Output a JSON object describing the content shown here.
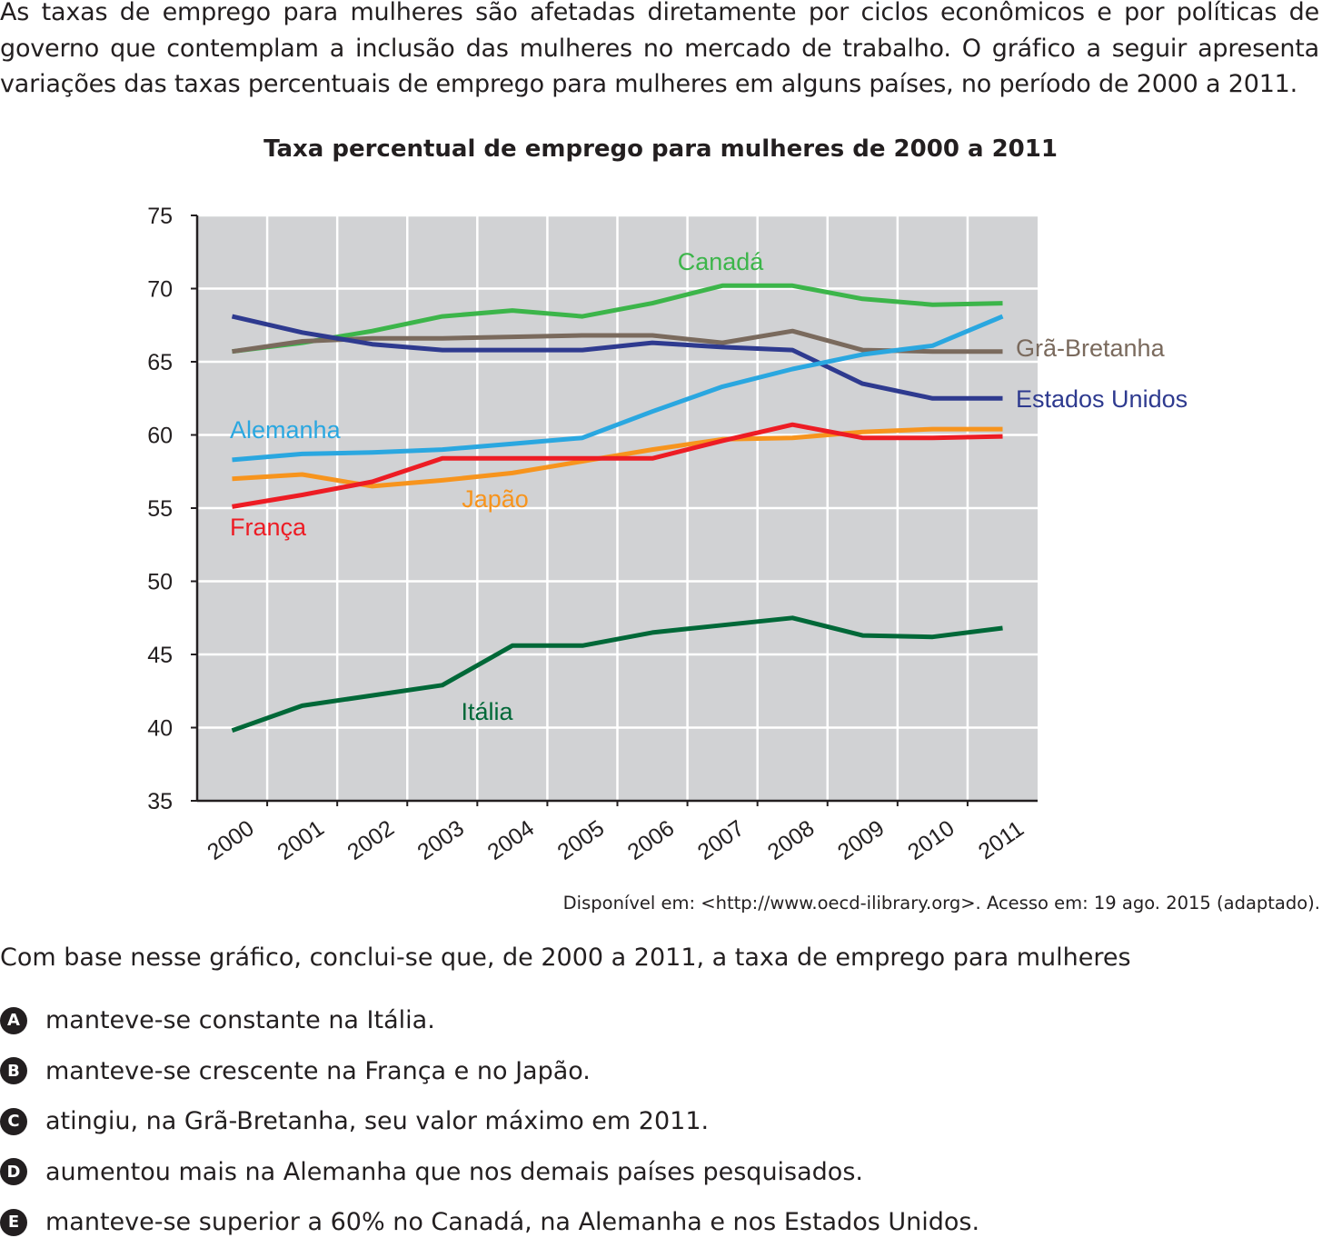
{
  "intro": "As taxas de emprego para mulheres são afetadas diretamente por ciclos econômicos e por políticas de governo que contemplam a inclusão das mulheres no mercado de trabalho. O gráfico a seguir apresenta variações das taxas percentuais de emprego para mulheres em alguns países, no período de 2000 a 2011.",
  "chart_data": {
    "type": "line",
    "title": "Taxa percentual de emprego para mulheres de 2000 a 2011",
    "xlabel": "",
    "ylabel": "",
    "x": [
      "2000",
      "2001",
      "2002",
      "2003",
      "2004",
      "2005",
      "2006",
      "2007",
      "2008",
      "2009",
      "2010",
      "2011"
    ],
    "ylim": [
      35,
      75
    ],
    "yticks": [
      "35",
      "40",
      "45",
      "50",
      "55",
      "60",
      "65",
      "70",
      "75"
    ],
    "grid": true,
    "series": [
      {
        "name": "Canadá",
        "color": "#3cb54a",
        "values": [
          65.7,
          66.3,
          67.1,
          68.1,
          68.5,
          68.1,
          69.0,
          70.2,
          70.2,
          69.3,
          68.9,
          69.0
        ]
      },
      {
        "name": "Grã-Bretanha",
        "color": "#7a6a5d",
        "values": [
          65.7,
          66.4,
          66.6,
          66.6,
          66.7,
          66.8,
          66.8,
          66.3,
          67.1,
          65.8,
          65.7,
          65.7
        ]
      },
      {
        "name": "Estados Unidos",
        "color": "#2e3a8f",
        "values": [
          68.1,
          67.0,
          66.2,
          65.8,
          65.8,
          65.8,
          66.3,
          66.0,
          65.8,
          63.5,
          62.5,
          62.5
        ]
      },
      {
        "name": "Alemanha",
        "color": "#2aa7e0",
        "values": [
          58.3,
          58.7,
          58.8,
          59.0,
          59.4,
          59.8,
          61.6,
          63.3,
          64.5,
          65.5,
          66.1,
          68.1
        ]
      },
      {
        "name": "Japão",
        "color": "#f7941d",
        "values": [
          57.0,
          57.3,
          56.5,
          56.9,
          57.4,
          58.2,
          59.0,
          59.7,
          59.8,
          60.2,
          60.4,
          60.4
        ]
      },
      {
        "name": "França",
        "color": "#ed1c24",
        "values": [
          55.1,
          55.9,
          56.8,
          58.4,
          58.4,
          58.4,
          58.4,
          59.6,
          60.7,
          59.8,
          59.8,
          59.9
        ]
      },
      {
        "name": "Itália",
        "color": "#006838",
        "values": [
          39.8,
          41.5,
          42.2,
          42.9,
          45.6,
          45.6,
          46.5,
          47.0,
          47.5,
          46.3,
          46.2,
          46.8
        ]
      }
    ]
  },
  "source": "Disponível em: <http://www.oecd-ilibrary.org>. Acesso em: 19 ago. 2015 (adaptado).",
  "question": "Com base nesse gráfico, conclui-se que, de 2000 a 2011, a taxa de emprego para mulheres",
  "options": [
    {
      "letter": "A",
      "text": "manteve-se constante na Itália."
    },
    {
      "letter": "B",
      "text": "manteve-se crescente na França e no Japão."
    },
    {
      "letter": "C",
      "text": "atingiu, na Grã-Bretanha, seu valor máximo em 2011."
    },
    {
      "letter": "D",
      "text": "aumentou mais na Alemanha que nos demais países pesquisados."
    },
    {
      "letter": "E",
      "text": "manteve-se superior a 60% no Canadá, na Alemanha e nos Estados Unidos."
    }
  ]
}
